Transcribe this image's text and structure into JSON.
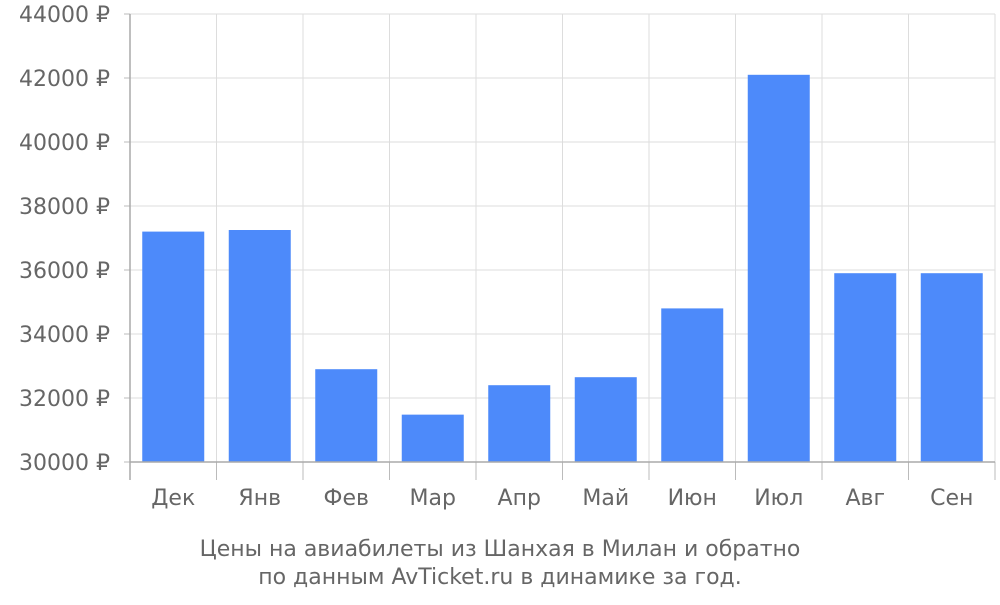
{
  "chart_data": {
    "type": "bar",
    "categories": [
      "Дек",
      "Янв",
      "Фев",
      "Мар",
      "Апр",
      "Май",
      "Июн",
      "Июл",
      "Авг",
      "Сен"
    ],
    "values": [
      37200,
      37250,
      32900,
      31480,
      32400,
      32650,
      34800,
      42100,
      35900,
      35900
    ],
    "title": "",
    "xlabel": "",
    "ylabel": "",
    "ylim": [
      30000,
      44000
    ],
    "yticks": [
      "30000 ₽",
      "32000 ₽",
      "34000 ₽",
      "36000 ₽",
      "38000 ₽",
      "40000 ₽",
      "42000 ₽",
      "44000 ₽"
    ],
    "ytick_values": [
      30000,
      32000,
      34000,
      36000,
      38000,
      40000,
      42000,
      44000
    ],
    "grid": true,
    "bar_color": "#4d8afa",
    "caption": [
      "Цены на авиабилеты из Шанхая в Милан и обратно",
      "по данным AvTicket.ru в динамике за год."
    ]
  }
}
